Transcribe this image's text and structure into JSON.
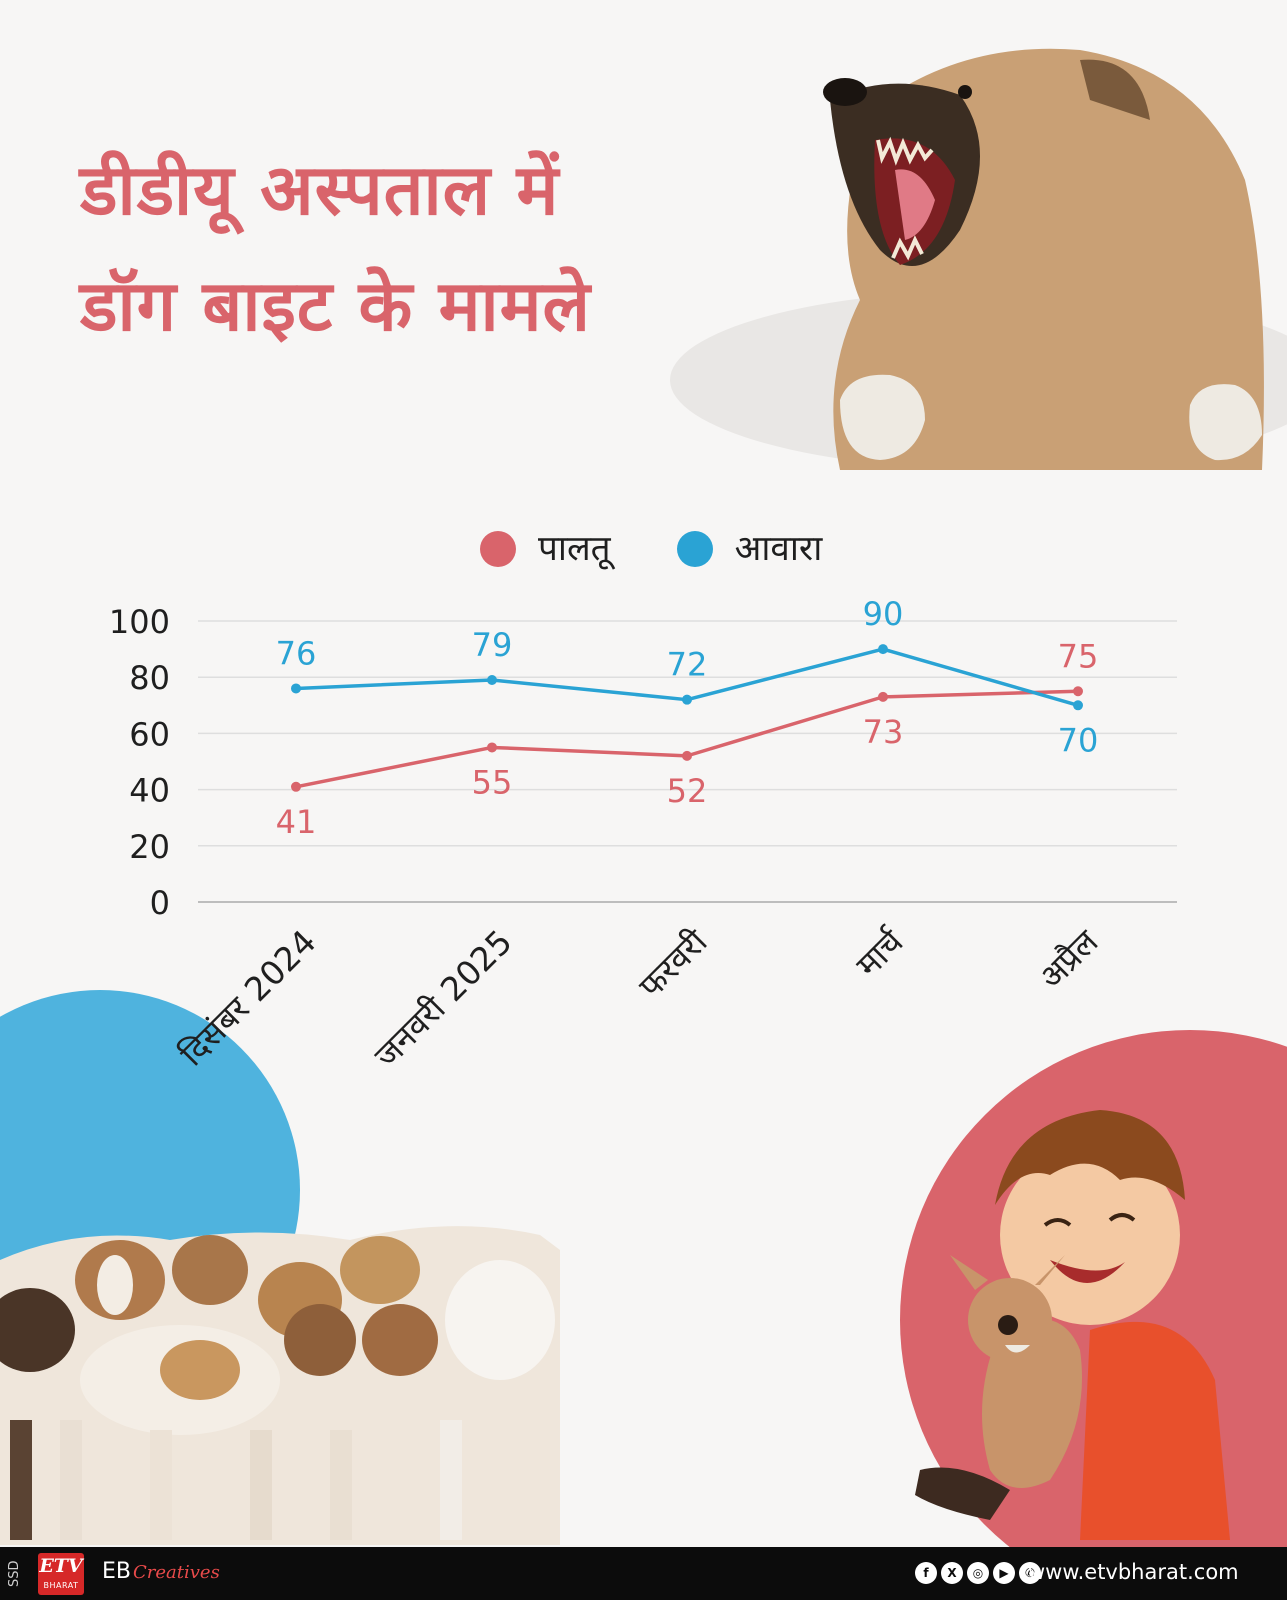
{
  "title": {
    "line1": "डीडीयू अस्पताल में",
    "line2": "डॉग बाइट के मामले"
  },
  "colors": {
    "pet": "#d9646b",
    "stray": "#2aa3d4",
    "title": "#d9646b"
  },
  "chart_data": {
    "type": "line",
    "title": "",
    "xlabel": "",
    "ylabel": "",
    "categories": [
      "दिसंबर 2024",
      "जनवरी 2025",
      "फरवरी",
      "मार्च",
      "अप्रैल"
    ],
    "yticks": [
      0,
      20,
      40,
      60,
      80,
      100
    ],
    "ylim": [
      0,
      100
    ],
    "grid": true,
    "legend": "top-center",
    "series": [
      {
        "name": "पालतू",
        "color": "#d9646b",
        "values": [
          41,
          55,
          52,
          73,
          75
        ]
      },
      {
        "name": "आवारा",
        "color": "#2aa3d4",
        "values": [
          76,
          79,
          72,
          90,
          70
        ]
      }
    ]
  },
  "footer": {
    "ssd": "SSD",
    "logo_mark": "ETV",
    "logo_sub": "BHARAT",
    "brand": "EB",
    "brand_script": "Creatives",
    "social": [
      "f",
      "X",
      "◎",
      "▶",
      "✆"
    ],
    "website": "www.etvbharat.com"
  }
}
